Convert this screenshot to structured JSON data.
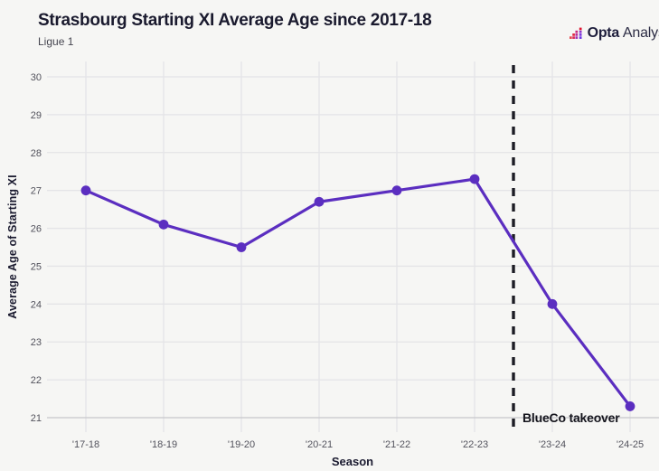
{
  "header": {
    "title": "Strasbourg Starting XI Average Age since 2017-18",
    "subtitle": "Ligue 1",
    "brand": {
      "name_bold": "Opta",
      "name_light": "Analyst",
      "icon_squares": [
        {
          "col": 0,
          "row": 3,
          "color": "#e8484e"
        },
        {
          "col": 1,
          "row": 2,
          "color": "#e02440"
        },
        {
          "col": 1,
          "row": 3,
          "color": "#d62a5e"
        },
        {
          "col": 2,
          "row": 1,
          "color": "#c9297e"
        },
        {
          "col": 2,
          "row": 2,
          "color": "#b52d9b"
        },
        {
          "col": 2,
          "row": 3,
          "color": "#a331b4"
        },
        {
          "col": 3,
          "row": 0,
          "color": "#e01430"
        },
        {
          "col": 3,
          "row": 1,
          "color": "#8b34cf"
        },
        {
          "col": 3,
          "row": 2,
          "color": "#7b36dd"
        },
        {
          "col": 3,
          "row": 3,
          "color": "#6d38e8"
        }
      ]
    }
  },
  "chart_data": {
    "type": "line",
    "title": "Strasbourg Starting XI Average Age since 2017-18",
    "subtitle": "Ligue 1",
    "xlabel": "Season",
    "ylabel": "Average Age of Starting XI",
    "categories": [
      "'17-18",
      "'18-19",
      "'19-20",
      "'20-21",
      "'21-22",
      "'22-23",
      "'23-24",
      "'24-25"
    ],
    "values": [
      27.0,
      26.1,
      25.5,
      26.7,
      27.0,
      27.3,
      24.0,
      21.3
    ],
    "ylim": [
      21,
      30
    ],
    "y_ticks": [
      21,
      22,
      23,
      24,
      25,
      26,
      27,
      28,
      29,
      30
    ],
    "grid": true,
    "legend": "none",
    "annotation": {
      "label": "BlueCo takeover",
      "type": "dashed-vertical-line",
      "x_between": [
        "'22-23",
        "'23-24"
      ]
    }
  },
  "colors": {
    "background": "#f6f6f4",
    "line": "#5b2ec0",
    "marker": "#5b2ec0",
    "grid": "#e4e4e7",
    "grid_baseline": "#c7c7cb",
    "dashed_line": "#1c1c24",
    "tick_text": "#52525c",
    "title_text": "#1a1a2e"
  }
}
